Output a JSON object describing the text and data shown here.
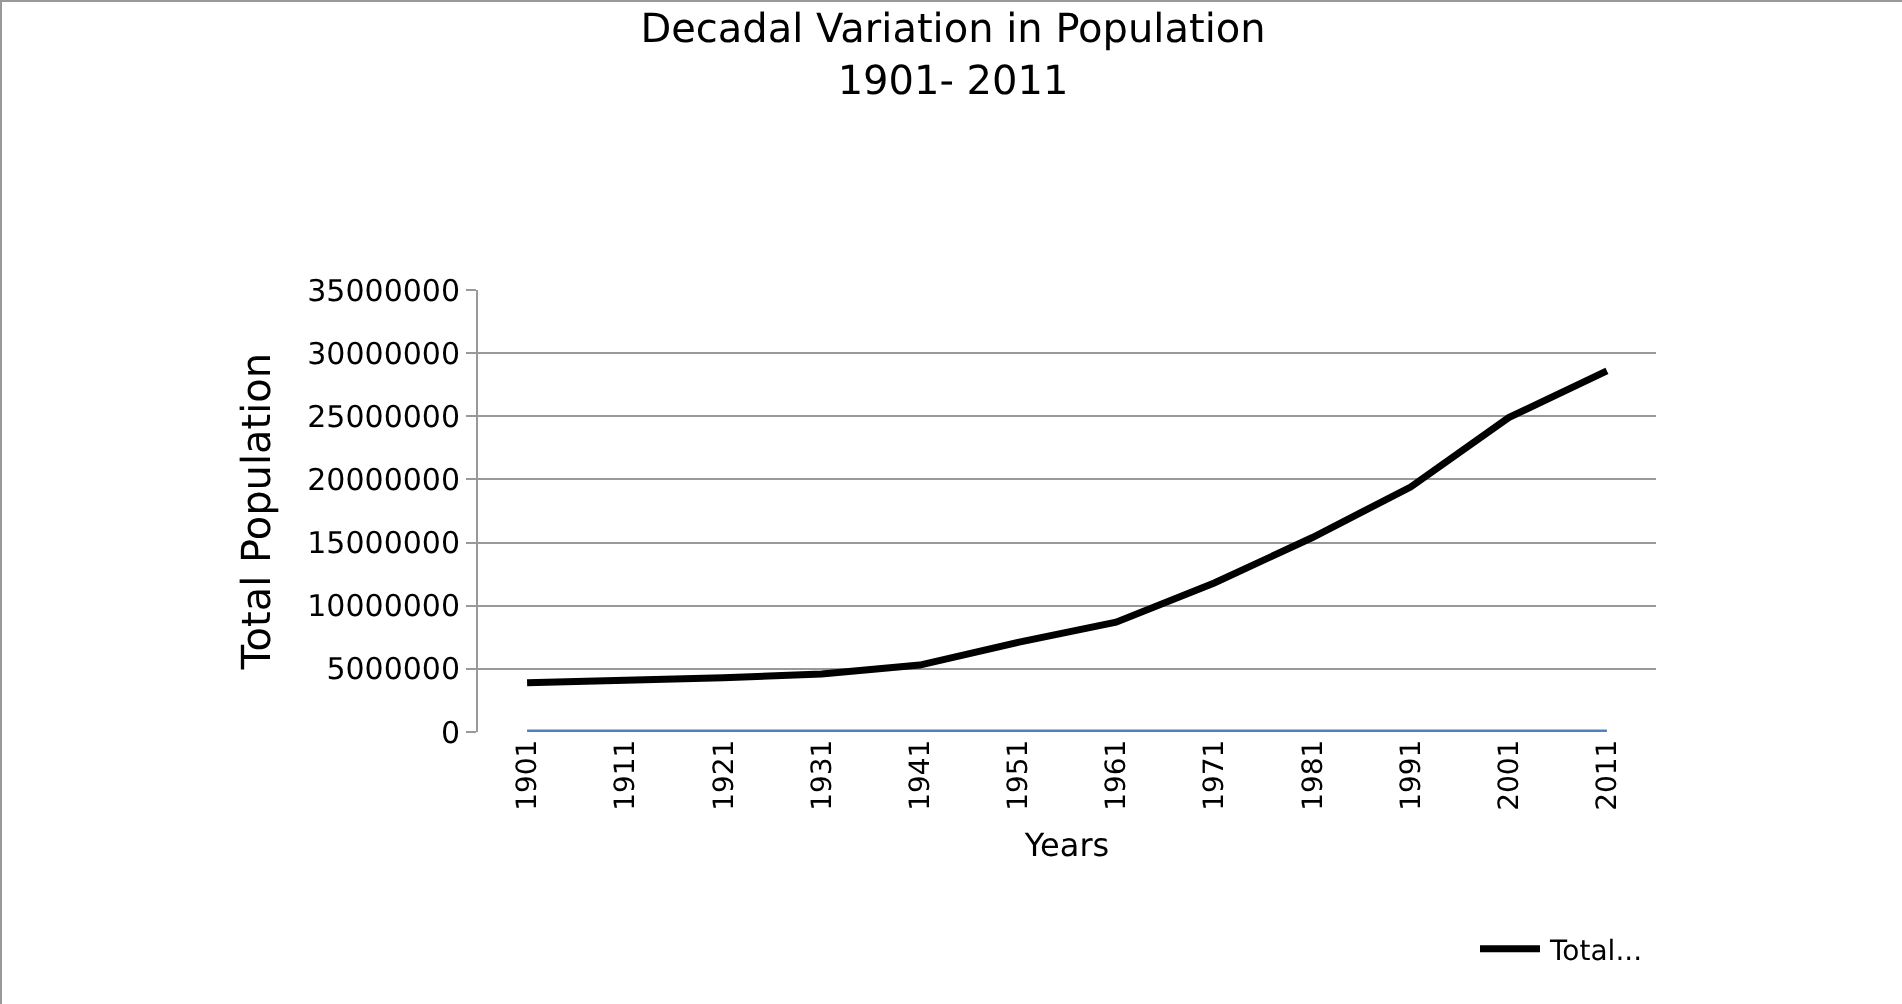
{
  "chart_data": {
    "type": "line",
    "title": "Decadal Variation in Population\n1901- 2011",
    "xlabel": "Years",
    "ylabel": "Total Population",
    "categories": [
      "1901",
      "1911",
      "1921",
      "1931",
      "1941",
      "1951",
      "1961",
      "1971",
      "1981",
      "1991",
      "2001",
      "2011"
    ],
    "series": [
      {
        "name": "Total...",
        "color": "#000000",
        "values": [
          3900000,
          4100000,
          4300000,
          4600000,
          5300000,
          7100000,
          8700000,
          11800000,
          15400000,
          19400000,
          24900000,
          28600000
        ]
      },
      {
        "color": "#4f81bd",
        "values": [
          0,
          0,
          0,
          0,
          0,
          0,
          0,
          0,
          0,
          0,
          0,
          0
        ]
      }
    ],
    "ylim": [
      0,
      35000000
    ],
    "yticks": [
      0,
      5000000,
      10000000,
      15000000,
      20000000,
      25000000,
      30000000,
      35000000
    ],
    "grid": "y",
    "legend": "bottom right",
    "marker": "none",
    "line_style": "solid"
  }
}
